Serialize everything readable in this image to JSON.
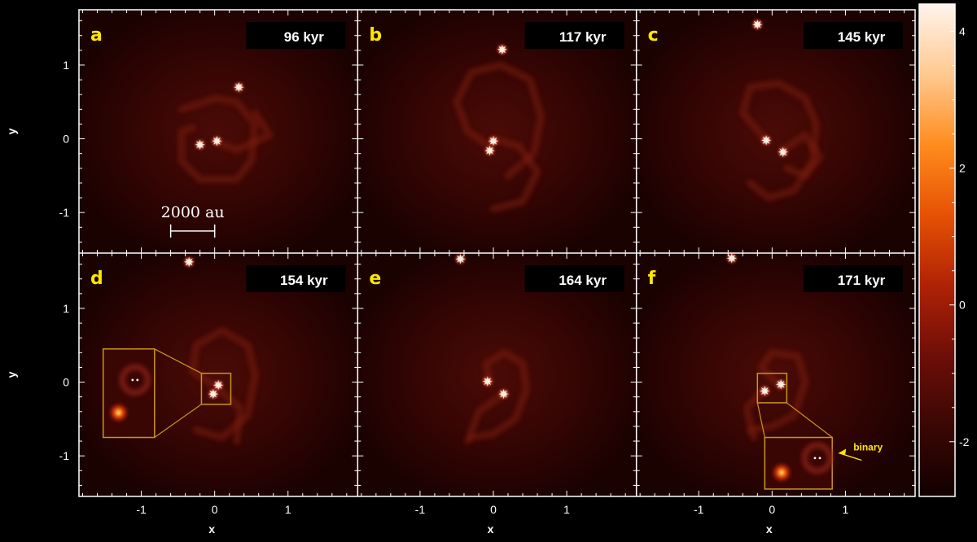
{
  "figure": {
    "background_color": "#000000",
    "frame_color": "#ffffff",
    "panel_label_color": "#ffe600",
    "time_box_color": "#000000",
    "time_text_color": "#ffffff",
    "zoom_box_color": "#c8961e",
    "annotation_color": "#ffe600"
  },
  "scale_bar": {
    "label": "2000 au",
    "length": 0.6
  },
  "binary_annotation": {
    "label": "binary"
  },
  "chart_data": {
    "type": "heatmap",
    "xlabel": "x",
    "ylabel": "y",
    "xlim": [
      -1.85,
      1.95
    ],
    "ylim": [
      -1.55,
      1.75
    ],
    "xticks": [
      -1,
      0,
      1
    ],
    "yticks": [
      -1,
      0,
      1
    ],
    "colorbar": {
      "range": [
        -2.8,
        4.4
      ],
      "ticks": [
        4,
        2,
        0,
        -2
      ],
      "colors": [
        "#120000",
        "#3a0704",
        "#6e0e08",
        "#b02206",
        "#e65204",
        "#ff8c1e",
        "#ffc990",
        "#fff4ec"
      ]
    },
    "panels": [
      {
        "label": "a",
        "time": "96 kyr",
        "stars": [
          [
            -0.2,
            -0.08
          ],
          [
            0.03,
            -0.03
          ],
          [
            0.33,
            0.7
          ]
        ],
        "arcs": [
          [
            [
              -0.45,
              0.4
            ],
            [
              0.02,
              0.55
            ],
            [
              0.3,
              0.5
            ],
            [
              0.55,
              0.2
            ],
            [
              0.5,
              -0.3
            ],
            [
              0.3,
              -0.55
            ],
            [
              -0.2,
              -0.55
            ],
            [
              -0.45,
              -0.3
            ],
            [
              -0.45,
              0.1
            ],
            [
              -0.3,
              0.15
            ]
          ],
          [
            [
              0.05,
              -0.05
            ],
            [
              0.3,
              -0.15
            ],
            [
              0.75,
              0.05
            ],
            [
              0.55,
              0.35
            ]
          ]
        ]
      },
      {
        "label": "b",
        "time": "117 kyr",
        "stars": [
          [
            0.0,
            -0.03
          ],
          [
            -0.05,
            -0.16
          ],
          [
            0.12,
            1.21
          ]
        ],
        "arcs": [
          [
            [
              -0.05,
              -0.1
            ],
            [
              -0.35,
              0.1
            ],
            [
              -0.5,
              0.5
            ],
            [
              -0.3,
              0.9
            ],
            [
              0.1,
              1.0
            ],
            [
              0.5,
              0.8
            ],
            [
              0.65,
              0.3
            ],
            [
              0.55,
              -0.2
            ],
            [
              0.2,
              -0.5
            ]
          ],
          [
            [
              0.0,
              0.0
            ],
            [
              0.35,
              -0.1
            ],
            [
              0.6,
              -0.45
            ],
            [
              0.4,
              -0.85
            ],
            [
              0.0,
              -0.95
            ]
          ]
        ]
      },
      {
        "label": "c",
        "time": "145 kyr",
        "stars": [
          [
            -0.08,
            -0.02
          ],
          [
            0.15,
            -0.18
          ],
          [
            -0.2,
            1.55
          ]
        ],
        "arcs": [
          [
            [
              -0.1,
              0.0
            ],
            [
              -0.4,
              0.35
            ],
            [
              -0.3,
              0.7
            ],
            [
              0.1,
              0.75
            ],
            [
              0.45,
              0.55
            ],
            [
              0.6,
              0.2
            ],
            [
              0.55,
              -0.3
            ],
            [
              0.3,
              -0.7
            ],
            [
              -0.05,
              -0.8
            ],
            [
              -0.3,
              -0.6
            ]
          ],
          [
            [
              0.15,
              -0.15
            ],
            [
              0.45,
              0.05
            ],
            [
              0.65,
              -0.25
            ],
            [
              0.45,
              -0.5
            ],
            [
              0.2,
              -0.4
            ]
          ]
        ]
      },
      {
        "label": "d",
        "time": "154 kyr",
        "stars": [
          [
            0.05,
            -0.04
          ],
          [
            -0.02,
            -0.16
          ],
          [
            -0.35,
            1.63
          ]
        ],
        "arcs": [
          [
            [
              0.0,
              -0.05
            ],
            [
              -0.3,
              0.15
            ],
            [
              -0.25,
              0.5
            ],
            [
              0.1,
              0.7
            ],
            [
              0.45,
              0.5
            ],
            [
              0.55,
              0.1
            ],
            [
              0.45,
              -0.45
            ],
            [
              0.1,
              -0.75
            ],
            [
              -0.25,
              -0.65
            ]
          ],
          [
            [
              0.05,
              -0.1
            ],
            [
              0.35,
              -0.35
            ],
            [
              0.3,
              -0.8
            ]
          ]
        ],
        "zoom": {
          "box": [
            -0.18,
            -0.3,
            0.22,
            0.12
          ],
          "inset": [
            -1.52,
            -0.75,
            -0.82,
            0.45
          ],
          "side": "left"
        }
      },
      {
        "label": "e",
        "time": "164 kyr",
        "stars": [
          [
            -0.08,
            0.01
          ],
          [
            0.14,
            -0.16
          ],
          [
            -0.45,
            1.67
          ]
        ],
        "arcs": [
          [
            [
              -0.05,
              0.0
            ],
            [
              -0.1,
              0.25
            ],
            [
              0.15,
              0.4
            ],
            [
              0.4,
              0.25
            ],
            [
              0.45,
              -0.1
            ],
            [
              0.3,
              -0.5
            ],
            [
              0.0,
              -0.7
            ],
            [
              -0.3,
              -0.75
            ]
          ],
          [
            [
              0.15,
              -0.15
            ],
            [
              -0.2,
              -0.4
            ],
            [
              -0.35,
              -0.8
            ]
          ]
        ]
      },
      {
        "label": "f",
        "time": "171 kyr",
        "stars": [
          [
            0.12,
            -0.03
          ],
          [
            -0.1,
            -0.12
          ],
          [
            -0.55,
            1.68
          ]
        ],
        "arcs": [
          [
            [
              0.1,
              -0.05
            ],
            [
              -0.15,
              0.2
            ],
            [
              0.0,
              0.4
            ],
            [
              0.35,
              0.35
            ],
            [
              0.45,
              0.0
            ],
            [
              0.3,
              -0.45
            ],
            [
              0.0,
              -0.6
            ],
            [
              -0.3,
              -0.65
            ]
          ],
          [
            [
              -0.1,
              -0.1
            ],
            [
              -0.35,
              -0.35
            ],
            [
              -0.25,
              -0.75
            ]
          ]
        ],
        "zoom": {
          "box": [
            -0.2,
            -0.28,
            0.2,
            0.12
          ],
          "inset": [
            -0.1,
            -1.45,
            0.82,
            -0.75
          ],
          "side": "below"
        }
      }
    ]
  }
}
